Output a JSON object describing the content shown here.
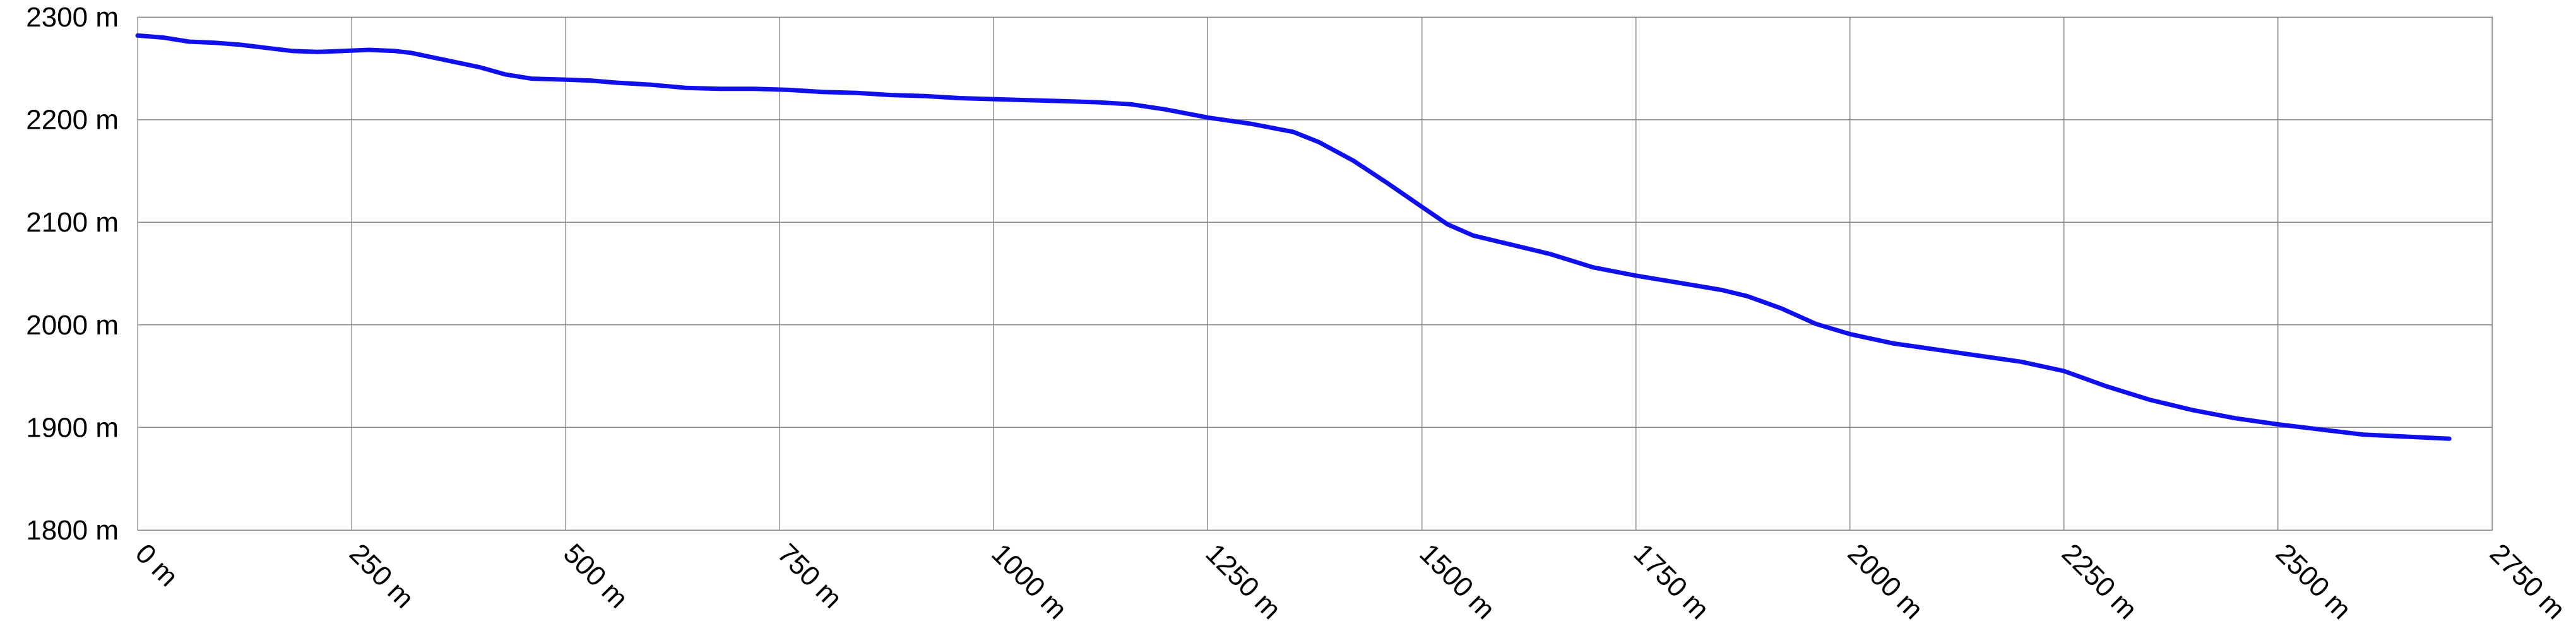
{
  "chart_data": {
    "type": "line",
    "title": "",
    "xlabel": "",
    "ylabel": "",
    "x_unit": "m",
    "y_unit": "m",
    "xlim": [
      0,
      2750
    ],
    "ylim": [
      1800,
      2300
    ],
    "x_ticks": [
      "0 m",
      "250 m",
      "500 m",
      "750 m",
      "1000 m",
      "1250 m",
      "1500 m",
      "1750 m",
      "2000 m",
      "2250 m",
      "2500 m",
      "2750 m"
    ],
    "y_ticks": [
      "2300 m",
      "2200 m",
      "2100 m",
      "2000 m",
      "1900 m",
      "1800 m"
    ],
    "x_tick_values": [
      0,
      250,
      500,
      750,
      1000,
      1250,
      1500,
      1750,
      2000,
      2250,
      2500,
      2750
    ],
    "y_tick_values": [
      2300,
      2200,
      2100,
      2000,
      1900,
      1800
    ],
    "grid": true,
    "legend": "none",
    "line_color": "#1010ee",
    "series": [
      {
        "x": [
          0,
          30,
          60,
          90,
          120,
          150,
          180,
          210,
          240,
          270,
          300,
          320,
          360,
          400,
          430,
          460,
          500,
          530,
          560,
          600,
          640,
          680,
          720,
          760,
          800,
          840,
          880,
          920,
          960,
          1000,
          1040,
          1080,
          1120,
          1160,
          1200,
          1250,
          1300,
          1350,
          1380,
          1420,
          1460,
          1500,
          1530,
          1560,
          1600,
          1650,
          1700,
          1750,
          1800,
          1850,
          1880,
          1920,
          1960,
          2000,
          2050,
          2100,
          2150,
          2200,
          2250,
          2300,
          2350,
          2400,
          2450,
          2500,
          2550,
          2600,
          2650,
          2700
        ],
        "y": [
          2282,
          2280,
          2276,
          2275,
          2273,
          2270,
          2267,
          2266,
          2267,
          2268,
          2267,
          2265,
          2258,
          2251,
          2244,
          2240,
          2239,
          2238,
          2236,
          2234,
          2231,
          2230,
          2230,
          2229,
          2227,
          2226,
          2224,
          2223,
          2221,
          2220,
          2219,
          2218,
          2217,
          2215,
          2210,
          2202,
          2196,
          2188,
          2178,
          2160,
          2138,
          2115,
          2098,
          2087,
          2079,
          2069,
          2056,
          2048,
          2041,
          2034,
          2028,
          2016,
          2001,
          1991,
          1982,
          1976,
          1970,
          1964,
          1955,
          1940,
          1927,
          1917,
          1909,
          1903,
          1898,
          1893,
          1891,
          1889
        ]
      }
    ]
  }
}
